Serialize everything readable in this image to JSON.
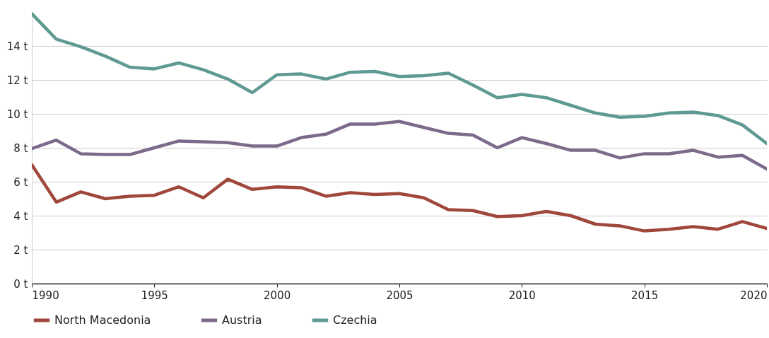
{
  "chart_data": {
    "type": "line",
    "x": [
      1990,
      1991,
      1992,
      1993,
      1994,
      1995,
      1996,
      1997,
      1998,
      1999,
      2000,
      2001,
      2002,
      2003,
      2004,
      2005,
      2006,
      2007,
      2008,
      2009,
      2010,
      2011,
      2012,
      2013,
      2014,
      2015,
      2016,
      2017,
      2018,
      2019,
      2020
    ],
    "series": [
      {
        "name": "North Macedonia",
        "color": "#a0473b",
        "values": [
          7.0,
          4.8,
          5.4,
          5.0,
          5.15,
          5.2,
          5.7,
          5.05,
          6.15,
          5.55,
          5.7,
          5.65,
          5.15,
          5.35,
          5.25,
          5.3,
          5.05,
          4.35,
          4.3,
          3.95,
          4.0,
          4.25,
          4.0,
          3.5,
          3.4,
          3.1,
          3.2,
          3.35,
          3.2,
          3.65,
          3.25
        ]
      },
      {
        "name": "Austria",
        "color": "#7d6a8a",
        "values": [
          7.95,
          8.45,
          7.65,
          7.6,
          7.6,
          8.0,
          8.4,
          8.35,
          8.3,
          8.1,
          8.1,
          8.6,
          8.8,
          9.4,
          9.4,
          9.55,
          9.2,
          8.85,
          8.75,
          8.0,
          8.6,
          8.25,
          7.85,
          7.85,
          7.4,
          7.65,
          7.65,
          7.85,
          7.45,
          7.55,
          6.75
        ]
      },
      {
        "name": "Czechia",
        "color": "#5e9a93",
        "values": [
          15.9,
          14.4,
          13.95,
          13.4,
          12.75,
          12.65,
          13.0,
          12.6,
          12.05,
          11.25,
          12.3,
          12.35,
          12.05,
          12.45,
          12.5,
          12.2,
          12.25,
          12.4,
          11.7,
          10.95,
          11.15,
          10.95,
          10.5,
          10.05,
          9.8,
          9.85,
          10.05,
          10.1,
          9.9,
          9.35,
          8.25
        ]
      }
    ],
    "xlim": [
      1990,
      2020
    ],
    "xticks": [
      1990,
      1995,
      2000,
      2005,
      2010,
      2015,
      2020
    ],
    "ylim": [
      0,
      16
    ],
    "yticks": [
      {
        "value": 0,
        "label": "0 t"
      },
      {
        "value": 2,
        "label": "2 t"
      },
      {
        "value": 4,
        "label": "4 t"
      },
      {
        "value": 6,
        "label": "6 t"
      },
      {
        "value": 8,
        "label": "8 t"
      },
      {
        "value": 10,
        "label": "10 t"
      },
      {
        "value": 12,
        "label": "12 t"
      },
      {
        "value": 14,
        "label": "14 t"
      }
    ],
    "grid": "y",
    "legend": "bottom",
    "marker": "none",
    "line_style": "solid"
  }
}
